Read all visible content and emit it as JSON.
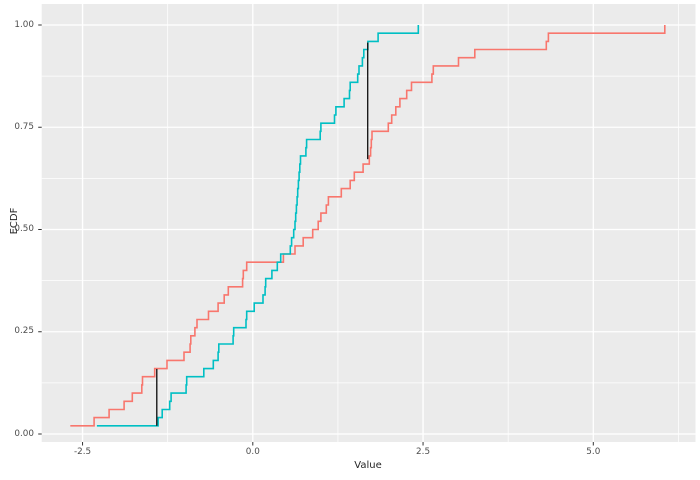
{
  "window": {
    "background": "#FFFFFF"
  },
  "chart_data": {
    "type": "line",
    "subtype": "ecdf_step",
    "title": "",
    "xlabel": "Value",
    "ylabel": "ECDF",
    "legend": "none",
    "grid": "on",
    "panel_bg": "#EBEBEB",
    "grid_color": "#FFFFFF",
    "axis_text_color": "#4D4D4D",
    "axis_title_color": "#262626",
    "tick_mark_color": "#333333",
    "xlim": [
      -3.1,
      6.5
    ],
    "ylim": [
      -0.02,
      1.05
    ],
    "x_tick_values": [
      -2.5,
      0.0,
      2.5,
      5.0
    ],
    "x_tick_labels": [
      "-2.5",
      "0.0",
      "2.5",
      "5.0"
    ],
    "y_tick_values": [
      0.0,
      0.25,
      0.5,
      0.75,
      1.0
    ],
    "y_tick_labels": [
      "0.00",
      "0.25",
      "0.50",
      "0.75",
      "1.00"
    ],
    "x_minor_values": [
      -1.25,
      1.25,
      3.75,
      6.25
    ],
    "y_minor_values": [
      0.125,
      0.375,
      0.625,
      0.875
    ],
    "ecdf_note": "Each series lists sorted sample values; ECDF y after the i-th point is i/n, n=50. Curves drawn as step functions starting at (x1, 1/n).",
    "series": [
      {
        "name": "red-sample",
        "color": "#F8766D",
        "n": 50,
        "x": [
          -2.68,
          -2.33,
          -2.11,
          -1.89,
          -1.77,
          -1.63,
          -1.62,
          -1.44,
          -1.26,
          -1.01,
          -0.92,
          -0.91,
          -0.85,
          -0.82,
          -0.65,
          -0.51,
          -0.42,
          -0.36,
          -0.15,
          -0.14,
          -0.09,
          0.45,
          0.62,
          0.74,
          0.88,
          0.96,
          1.0,
          1.08,
          1.11,
          1.3,
          1.43,
          1.49,
          1.62,
          1.71,
          1.73,
          1.74,
          1.75,
          1.99,
          2.04,
          2.1,
          2.16,
          2.26,
          2.33,
          2.63,
          2.65,
          3.02,
          3.26,
          4.31,
          4.34,
          6.05
        ]
      },
      {
        "name": "cyan-sample",
        "color": "#00BFC4",
        "n": 50,
        "x": [
          -2.29,
          -1.39,
          -1.33,
          -1.22,
          -1.2,
          -0.98,
          -0.97,
          -0.72,
          -0.58,
          -0.51,
          -0.5,
          -0.29,
          -0.28,
          -0.1,
          -0.09,
          0.02,
          0.15,
          0.18,
          0.19,
          0.28,
          0.36,
          0.41,
          0.55,
          0.57,
          0.6,
          0.62,
          0.63,
          0.64,
          0.65,
          0.66,
          0.67,
          0.68,
          0.69,
          0.7,
          0.78,
          0.79,
          0.99,
          1.0,
          1.2,
          1.22,
          1.34,
          1.42,
          1.43,
          1.54,
          1.56,
          1.61,
          1.63,
          1.69,
          1.84,
          2.43
        ]
      }
    ],
    "ks_segments": [
      {
        "x": -1.41,
        "p_from": 0.02,
        "p_to": 0.159,
        "color": "#1A1A1A"
      },
      {
        "x": 1.687,
        "p_from": 0.672,
        "p_to": 0.957,
        "color": "#1A1A1A"
      }
    ]
  }
}
